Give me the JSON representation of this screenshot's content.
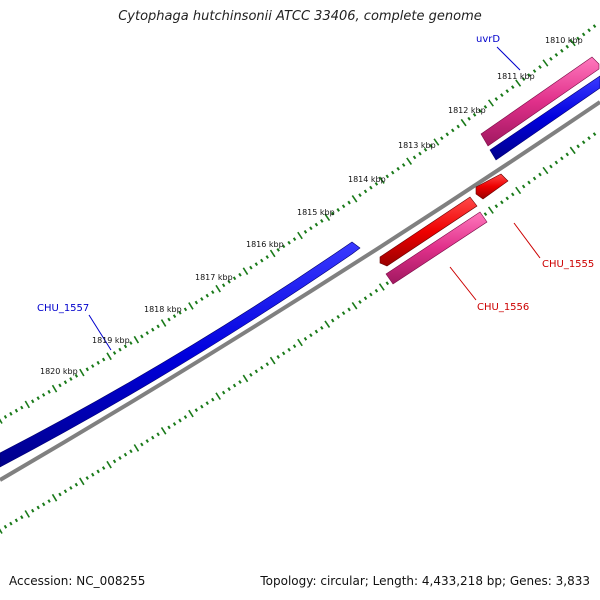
{
  "title": "Cytophaga hutchinsonii ATCC 33406, complete genome",
  "footer": {
    "accession": "Accession: NC_008255",
    "summary": "Topology: circular; Length: 4,433,218 bp; Genes: 3,833"
  },
  "tick_labels": [
    "1810 kbp",
    "1811 kbp",
    "1812 kbp",
    "1813 kbp",
    "1814 kbp",
    "1815 kbp",
    "1816 kbp",
    "1817 kbp",
    "1818 kbp",
    "1819 kbp",
    "1820 kbp"
  ],
  "genes": [
    {
      "name": "uvrD",
      "color": "#0000cc"
    },
    {
      "name": "CHU_1555",
      "color": "#cc0000"
    },
    {
      "name": "CHU_1556",
      "color": "#cc0000"
    },
    {
      "name": "CHU_1557",
      "color": "#0000cc"
    }
  ],
  "colors": {
    "forward_strand": "#0000dd",
    "reverse_red": "#ee0000",
    "reverse_pink": "#e0308a",
    "backbone": "#808080",
    "ticks": "#1a7a1a"
  }
}
